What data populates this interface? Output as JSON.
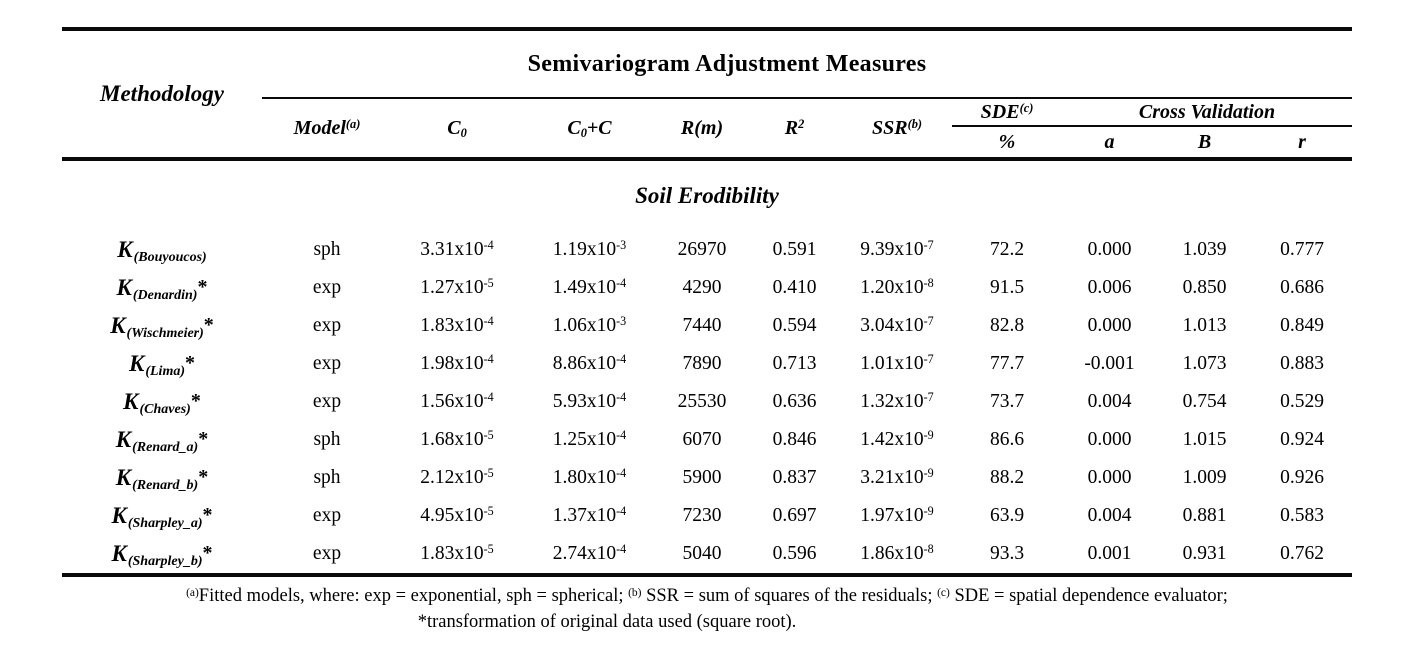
{
  "table": {
    "group_title": "Semivariogram Adjustment Measures",
    "row_header": "Methodology",
    "section_title": "Soil Erodibility",
    "columns": {
      "model": "Model^{(a)}",
      "c0": "C_{0}",
      "c0c": "C_{0}+C",
      "rm": "R(m)",
      "r2": "R^{2}",
      "ssr": "SSR^{(b)}",
      "sde": "SDE^{(c)}",
      "sde_unit": "%",
      "cross_validation": "Cross Validation",
      "cv_a": "a",
      "cv_b": "B",
      "cv_r": "r"
    },
    "rows": [
      {
        "name": "K",
        "sub": "(Bouyoucos)",
        "star": "",
        "model": "sph",
        "c0": "3.31x10^{-4}",
        "c0c": "1.19x10^{-3}",
        "rm": "26970",
        "r2": "0.591",
        "ssr": "9.39x10^{-7}",
        "sde": "72.2",
        "a": "0.000",
        "b": "1.039",
        "r": "0.777"
      },
      {
        "name": "K",
        "sub": "(Denardin)",
        "star": "*",
        "model": "exp",
        "c0": "1.27x10^{-5}",
        "c0c": "1.49x10^{-4}",
        "rm": "4290",
        "r2": "0.410",
        "ssr": "1.20x10^{-8}",
        "sde": "91.5",
        "a": "0.006",
        "b": "0.850",
        "r": "0.686"
      },
      {
        "name": "K",
        "sub": "(Wischmeier)",
        "star": "*",
        "model": "exp",
        "c0": "1.83x10^{-4}",
        "c0c": "1.06x10^{-3}",
        "rm": "7440",
        "r2": "0.594",
        "ssr": "3.04x10^{-7}",
        "sde": "82.8",
        "a": "0.000",
        "b": "1.013",
        "r": "0.849"
      },
      {
        "name": "K",
        "sub": "(Lima)",
        "star": "*",
        "model": "exp",
        "c0": "1.98x10^{-4}",
        "c0c": "8.86x10^{-4}",
        "rm": "7890",
        "r2": "0.713",
        "ssr": "1.01x10^{-7}",
        "sde": "77.7",
        "a": "-0.001",
        "b": "1.073",
        "r": "0.883"
      },
      {
        "name": "K",
        "sub": "(Chaves)",
        "star": "*",
        "model": "exp",
        "c0": "1.56x10^{-4}",
        "c0c": "5.93x10^{-4}",
        "rm": "25530",
        "r2": "0.636",
        "ssr": "1.32x10^{-7}",
        "sde": "73.7",
        "a": "0.004",
        "b": "0.754",
        "r": "0.529"
      },
      {
        "name": "K",
        "sub": "(Renard_a)",
        "star": "*",
        "model": "sph",
        "c0": "1.68x10^{-5}",
        "c0c": "1.25x10^{-4}",
        "rm": "6070",
        "r2": "0.846",
        "ssr": "1.42x10^{-9}",
        "sde": "86.6",
        "a": "0.000",
        "b": "1.015",
        "r": "0.924"
      },
      {
        "name": "K",
        "sub": "(Renard_b)",
        "star": "*",
        "model": "sph",
        "c0": "2.12x10^{-5}",
        "c0c": "1.80x10^{-4}",
        "rm": "5900",
        "r2": "0.837",
        "ssr": "3.21x10^{-9}",
        "sde": "88.2",
        "a": "0.000",
        "b": "1.009",
        "r": "0.926"
      },
      {
        "name": "K",
        "sub": "(Sharpley_a)",
        "star": "*",
        "model": "exp",
        "c0": "4.95x10^{-5}",
        "c0c": "1.37x10^{-4}",
        "rm": "7230",
        "r2": "0.697",
        "ssr": "1.97x10^{-9}",
        "sde": "63.9",
        "a": "0.004",
        "b": "0.881",
        "r": "0.583"
      },
      {
        "name": "K",
        "sub": "(Sharpley_b)",
        "star": "*",
        "model": "exp",
        "c0": "1.83x10^{-5}",
        "c0c": "2.74x10^{-4}",
        "rm": "5040",
        "r2": "0.596",
        "ssr": "1.86x10^{-8}",
        "sde": "93.3",
        "a": "0.001",
        "b": "0.931",
        "r": "0.762"
      }
    ]
  },
  "footnote": {
    "line1": "^{(a)}Fitted models, where: exp = exponential, sph = spherical; ^{(b)} SSR = sum of squares of the residuals; ^{(c)} SDE = spatial dependence evaluator;",
    "line2": "*transformation of original data used (square root)."
  }
}
